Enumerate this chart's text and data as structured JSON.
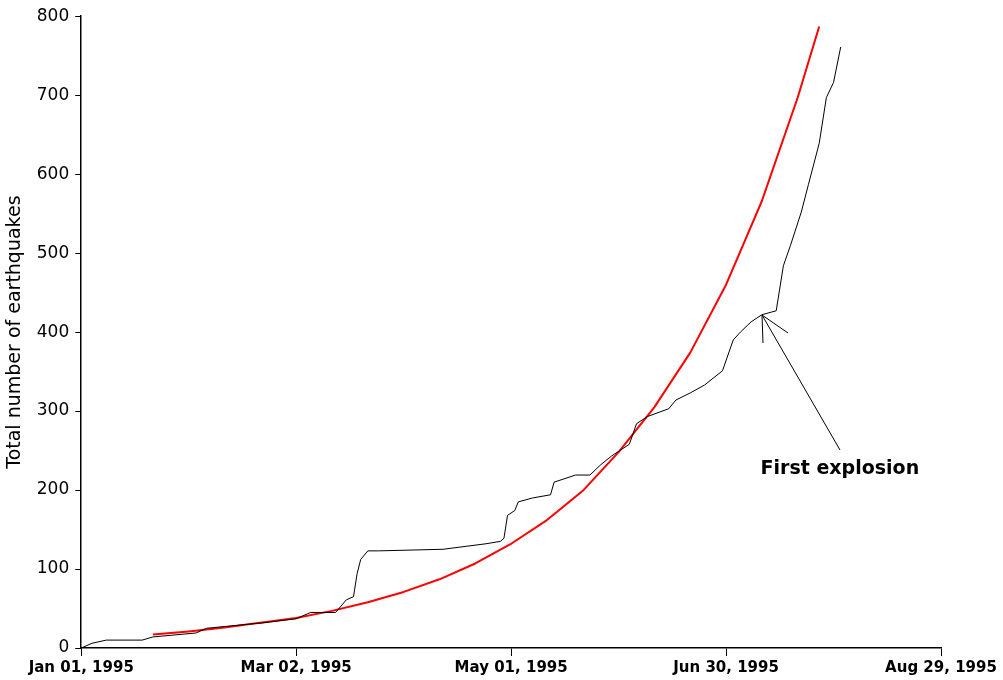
{
  "chart_data": {
    "type": "line",
    "ylabel": "Total number of earthquakes",
    "xlim": [
      "1995-01-01",
      "1995-08-29"
    ],
    "xticks": [
      {
        "value": "1995-01-01",
        "label": "Jan 01, 1995"
      },
      {
        "value": "1995-03-02",
        "label": "Mar 02, 1995"
      },
      {
        "value": "1995-05-01",
        "label": "May 01, 1995"
      },
      {
        "value": "1995-06-30",
        "label": "Jun 30, 1995"
      },
      {
        "value": "1995-08-29",
        "label": "Aug 29, 1995"
      }
    ],
    "ylim": [
      0,
      800
    ],
    "yticks": [
      0,
      100,
      200,
      300,
      400,
      500,
      600,
      700,
      800
    ],
    "grid": false,
    "legend": false,
    "marker": "none",
    "line_style": "solid",
    "annotations": [
      {
        "text": "First explosion",
        "x": "1995-07-10",
        "y": 422
      }
    ],
    "series": [
      {
        "color": "#000000",
        "x": [
          "1995-01-01",
          "1995-01-04",
          "1995-01-08",
          "1995-01-18",
          "1995-01-21",
          "1995-02-02",
          "1995-02-05",
          "1995-02-21",
          "1995-03-02",
          "1995-03-06",
          "1995-03-13",
          "1995-03-16",
          "1995-03-18",
          "1995-03-19",
          "1995-03-20",
          "1995-03-22",
          "1995-03-25",
          "1995-04-12",
          "1995-04-24",
          "1995-04-28",
          "1995-04-29",
          "1995-04-30",
          "1995-05-02",
          "1995-05-03",
          "1995-05-07",
          "1995-05-12",
          "1995-05-13",
          "1995-05-19",
          "1995-05-23",
          "1995-05-26",
          "1995-05-29",
          "1995-06-03",
          "1995-06-05",
          "1995-06-08",
          "1995-06-14",
          "1995-06-16",
          "1995-06-20",
          "1995-06-24",
          "1995-06-29",
          "1995-07-02",
          "1995-07-04",
          "1995-07-07",
          "1995-07-10",
          "1995-07-14",
          "1995-07-16",
          "1995-07-18",
          "1995-07-21",
          "1995-07-23",
          "1995-07-26",
          "1995-07-28",
          "1995-07-30",
          "1995-08-01"
        ],
        "values": [
          0,
          6,
          10,
          10,
          14,
          19,
          25,
          32,
          37,
          45,
          45,
          61,
          65,
          94,
          112,
          123,
          123,
          125,
          132,
          135,
          139,
          168,
          174,
          185,
          190,
          194,
          210,
          219,
          219,
          232,
          243,
          258,
          284,
          293,
          303,
          314,
          323,
          333,
          351,
          390,
          400,
          413,
          422,
          427,
          484,
          510,
          552,
          587,
          639,
          697,
          716,
          761
        ]
      },
      {
        "color": "#ff0000",
        "x": [
          "1995-01-21",
          "1995-01-31",
          "1995-02-10",
          "1995-02-20",
          "1995-03-02",
          "1995-03-12",
          "1995-03-22",
          "1995-04-01",
          "1995-04-11",
          "1995-04-21",
          "1995-05-01",
          "1995-05-11",
          "1995-05-21",
          "1995-05-31",
          "1995-06-10",
          "1995-06-20",
          "1995-06-30",
          "1995-07-10",
          "1995-07-20",
          "1995-07-26"
        ],
        "values": [
          17,
          21,
          26,
          32,
          38,
          47,
          58,
          71,
          87,
          107,
          132,
          162,
          199,
          248,
          305,
          374,
          460,
          566,
          697,
          787
        ]
      }
    ]
  }
}
